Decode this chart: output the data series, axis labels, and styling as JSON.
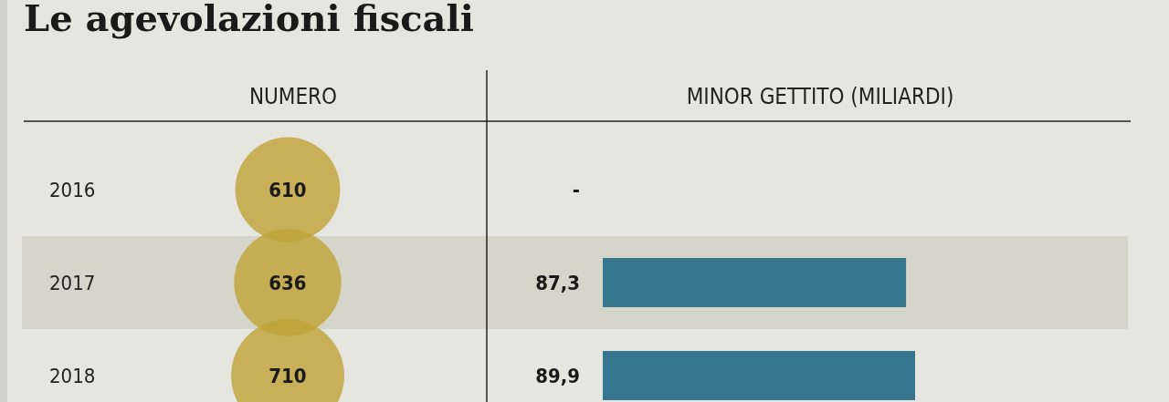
{
  "chart_data": [
    {
      "type": "other",
      "title": "Le agevolazioni fiscali",
      "xlabel": "NUMERO",
      "categories": [
        "2016",
        "2017",
        "2018"
      ],
      "values": [
        610,
        636,
        710
      ],
      "color": "#bfa338",
      "data_labels": true
    },
    {
      "type": "bar",
      "orientation": "horizontal",
      "xlabel": "MINOR GETTITO (MILIARDI)",
      "categories": [
        "2016",
        "2017",
        "2018"
      ],
      "values": [
        null,
        87.3,
        89.9
      ],
      "value_labels": [
        "-",
        "87,3",
        "89,9"
      ],
      "color": "#37768f",
      "tick_labels": false,
      "bands": [
        {
          "axis": "y",
          "from": "2017",
          "to": "2017",
          "color": "#d6d5ca"
        }
      ]
    }
  ]
}
